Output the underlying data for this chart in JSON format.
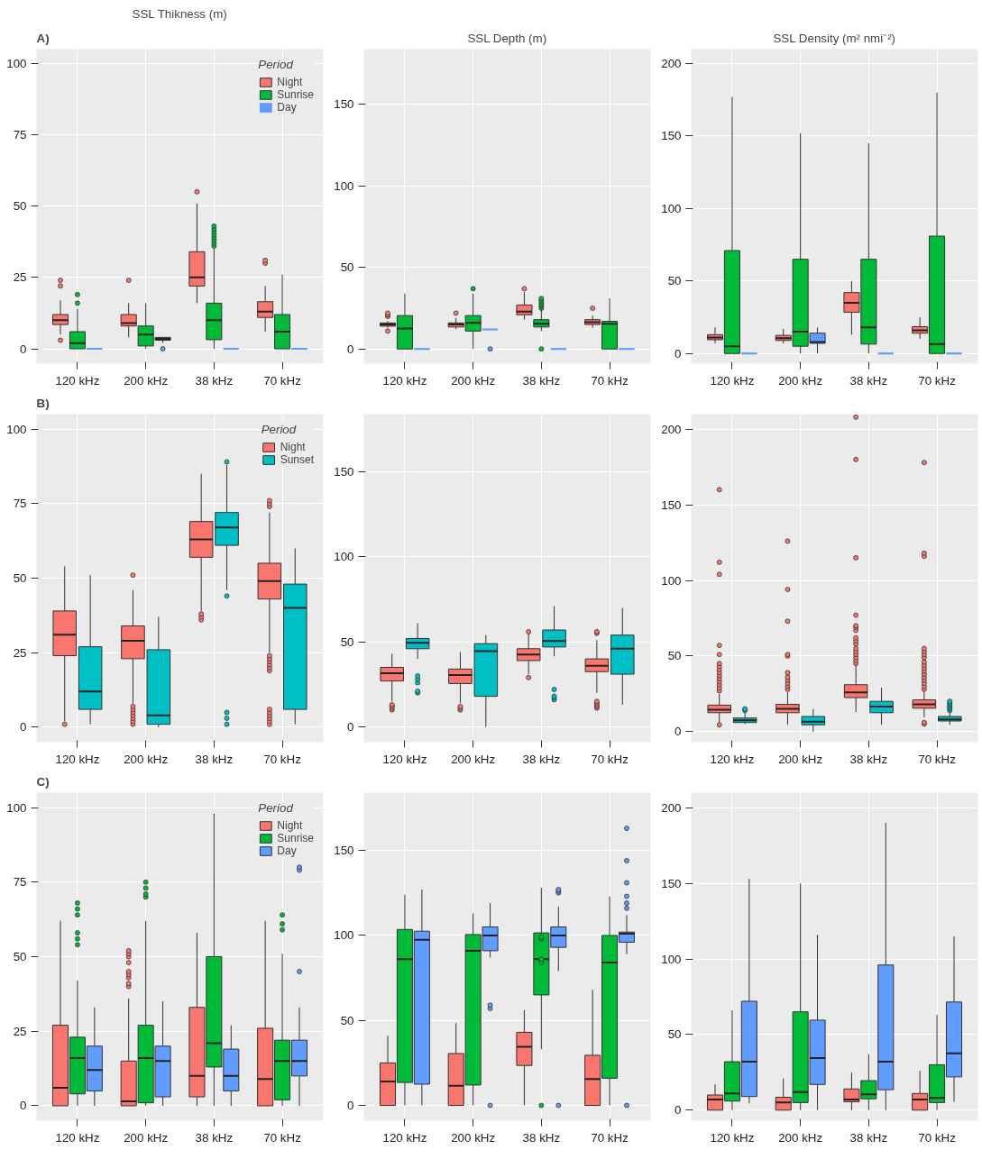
{
  "chart_data": [
    {
      "type": "box",
      "title": "SSL Thikness (m)",
      "annotations": [
        "A)"
      ],
      "categories": [
        "120 kHz",
        "200 kHz",
        "38 kHz",
        "70 kHz"
      ],
      "ylim": [
        -5.2,
        105
      ],
      "yticks": [
        0,
        25,
        50,
        75,
        100
      ],
      "grid": true,
      "legend": "top right",
      "legend_title": "Period",
      "series": [
        {
          "name": "Night",
          "color": "#f8766d",
          "boxes": [
            {
              "low": 5,
              "q1": 8.5,
              "median": 10,
              "q3": 12,
              "high": 17,
              "outliers": [
                3,
                22,
                24
              ]
            },
            {
              "low": 4,
              "q1": 8,
              "median": 9,
              "q3": 12,
              "high": 16,
              "outliers": [
                24
              ]
            },
            {
              "low": 16,
              "q1": 22,
              "median": 25,
              "q3": 34,
              "high": 51,
              "outliers": [
                55
              ]
            },
            {
              "low": 6,
              "q1": 11,
              "median": 13,
              "q3": 16.5,
              "high": 22,
              "outliers": [
                30,
                31
              ]
            }
          ]
        },
        {
          "name": "Sunrise",
          "color": "#00ba38",
          "boxes": [
            {
              "low": 0,
              "q1": 0,
              "median": 2,
              "q3": 6,
              "high": 14,
              "outliers": [
                16,
                19
              ]
            },
            {
              "low": 0,
              "q1": 1,
              "median": 5,
              "q3": 8,
              "high": 16
            },
            {
              "low": 0,
              "q1": 3.2,
              "median": 10,
              "q3": 16,
              "high": 35,
              "outliers": [
                36,
                37,
                38,
                39,
                40,
                41,
                42,
                43
              ]
            },
            {
              "low": 0,
              "q1": 0,
              "median": 6,
              "q3": 12,
              "high": 26
            }
          ]
        },
        {
          "name": "Day",
          "color": "#619cff",
          "boxes": [
            {
              "low": 0,
              "q1": 0,
              "median": 0,
              "q3": 0,
              "high": 0
            },
            {
              "low": 2,
              "q1": 3,
              "median": 3.5,
              "q3": 4,
              "high": 4,
              "outliers": [
                0
              ]
            },
            {
              "low": 0,
              "q1": 0,
              "median": 0,
              "q3": 0,
              "high": 0
            },
            {
              "low": 0,
              "q1": 0,
              "median": 0,
              "q3": 0,
              "high": 0
            }
          ]
        }
      ]
    },
    {
      "type": "box",
      "title": "SSL Depth (m)",
      "categories": [
        "120 kHz",
        "200 kHz",
        "38 kHz",
        "70 kHz"
      ],
      "ylim": [
        -9,
        184
      ],
      "yticks": [
        0,
        50,
        100,
        150
      ],
      "grid": true,
      "series": [
        {
          "color": "#f8766d",
          "boxes": [
            {
              "low": 13,
              "q1": 14,
              "median": 15,
              "q3": 16,
              "high": 17,
              "outliers": [
                11,
                20,
                21,
                22
              ]
            },
            {
              "low": 12,
              "q1": 13.5,
              "median": 15,
              "q3": 16,
              "high": 19,
              "outliers": [
                22
              ]
            },
            {
              "low": 18,
              "q1": 21,
              "median": 23,
              "q3": 27,
              "high": 35,
              "outliers": [
                37
              ]
            },
            {
              "low": 13,
              "q1": 15,
              "median": 16.5,
              "q3": 18,
              "high": 20.5,
              "outliers": [
                25
              ]
            }
          ]
        },
        {
          "color": "#00ba38",
          "boxes": [
            {
              "low": 0,
              "q1": 0,
              "median": 12.5,
              "q3": 20.5,
              "high": 34
            },
            {
              "low": 0,
              "q1": 11,
              "median": 16,
              "q3": 20.5,
              "high": 34,
              "outliers": [
                37
              ]
            },
            {
              "low": 11,
              "q1": 13.5,
              "median": 15.5,
              "q3": 18,
              "high": 24,
              "outliers": [
                0,
                25,
                26,
                27,
                28,
                29,
                30,
                31
              ]
            },
            {
              "low": 0,
              "q1": 0,
              "median": 15.5,
              "q3": 17,
              "high": 31
            }
          ]
        },
        {
          "color": "#619cff",
          "boxes": [
            {
              "low": 0,
              "q1": 0,
              "median": 0,
              "q3": 0,
              "high": 0
            },
            {
              "low": 12,
              "q1": 12,
              "median": 12,
              "q3": 12,
              "high": 12,
              "outliers": [
                0
              ]
            },
            {
              "low": 0,
              "q1": 0,
              "median": 0,
              "q3": 0,
              "high": 0
            },
            {
              "low": 0,
              "q1": 0,
              "median": 0,
              "q3": 0,
              "high": 0
            }
          ]
        }
      ]
    },
    {
      "type": "box",
      "title": "SSL Density (m² nmi⁻²)",
      "categories": [
        "120 kHz",
        "200 kHz",
        "38 kHz",
        "70 kHz"
      ],
      "ylim": [
        -7,
        210
      ],
      "yticks": [
        0,
        50,
        100,
        150,
        200
      ],
      "grid": true,
      "series": [
        {
          "color": "#f8766d",
          "boxes": [
            {
              "low": 7,
              "q1": 9.5,
              "median": 11,
              "q3": 13,
              "high": 18
            },
            {
              "low": 7,
              "q1": 9,
              "median": 10.5,
              "q3": 12.5,
              "high": 17
            },
            {
              "low": 13,
              "q1": 28.5,
              "median": 35,
              "q3": 42,
              "high": 50
            },
            {
              "low": 10,
              "q1": 14,
              "median": 16,
              "q3": 18.5,
              "high": 25
            }
          ]
        },
        {
          "color": "#00ba38",
          "boxes": [
            {
              "low": 0,
              "q1": 0,
              "median": 5,
              "q3": 71,
              "high": 177
            },
            {
              "low": 0,
              "q1": 5,
              "median": 15,
              "q3": 65,
              "high": 152
            },
            {
              "low": 0,
              "q1": 6.5,
              "median": 18,
              "q3": 65,
              "high": 145
            },
            {
              "low": 0,
              "q1": 0,
              "median": 6.5,
              "q3": 81,
              "high": 180
            }
          ]
        },
        {
          "color": "#619cff",
          "boxes": [
            {
              "low": 0,
              "q1": 0,
              "median": 0,
              "q3": 0,
              "high": 0
            },
            {
              "low": 0,
              "q1": 7,
              "median": 8,
              "q3": 14,
              "high": 18
            },
            {
              "low": 0,
              "q1": 0,
              "median": 0,
              "q3": 0,
              "high": 0
            },
            {
              "low": 0,
              "q1": 0,
              "median": 0,
              "q3": 0,
              "high": 0
            }
          ]
        }
      ]
    },
    {
      "type": "box",
      "annotations": [
        "B)"
      ],
      "categories": [
        "120 kHz",
        "200 kHz",
        "38 kHz",
        "70 kHz"
      ],
      "ylim": [
        -5,
        105
      ],
      "yticks": [
        0,
        25,
        50,
        75,
        100
      ],
      "grid": true,
      "legend": "top right",
      "legend_title": "Period",
      "series": [
        {
          "name": "Night",
          "color": "#f8766d",
          "boxes": [
            {
              "low": 2,
              "q1": 24,
              "median": 31,
              "q3": 39,
              "high": 54,
              "outliers": [
                1
              ]
            },
            {
              "low": 8,
              "q1": 23,
              "median": 29,
              "q3": 34,
              "high": 46,
              "outliers": [
                1,
                2,
                3,
                4,
                5,
                6,
                7,
                51
              ]
            },
            {
              "low": 39,
              "q1": 57,
              "median": 63,
              "q3": 69,
              "high": 85,
              "outliers": [
                36,
                37,
                38
              ]
            },
            {
              "low": 25,
              "q1": 43,
              "median": 49,
              "q3": 55,
              "high": 72,
              "outliers": [
                1,
                2,
                3,
                4,
                5,
                6,
                19,
                20,
                21,
                22,
                23,
                24,
                74,
                75,
                76
              ]
            }
          ]
        },
        {
          "name": "Sunset",
          "color": "#00bfc4",
          "boxes": [
            {
              "low": 1,
              "q1": 6,
              "median": 12,
              "q3": 27,
              "high": 51
            },
            {
              "low": 0,
              "q1": 1,
              "median": 4,
              "q3": 26,
              "high": 37
            },
            {
              "low": 46,
              "q1": 61,
              "median": 67,
              "q3": 72,
              "high": 88,
              "outliers": [
                1,
                3,
                5,
                44,
                89
              ]
            },
            {
              "low": 1,
              "q1": 6,
              "median": 40,
              "q3": 48,
              "high": 60
            }
          ]
        }
      ]
    },
    {
      "type": "box",
      "categories": [
        "120 kHz",
        "200 kHz",
        "38 kHz",
        "70 kHz"
      ],
      "ylim": [
        -9,
        184
      ],
      "yticks": [
        0,
        50,
        100,
        150
      ],
      "grid": true,
      "series": [
        {
          "color": "#f8766d",
          "boxes": [
            {
              "low": 15,
              "q1": 27,
              "median": 31.5,
              "q3": 35,
              "high": 43,
              "outliers": [
                10,
                11,
                12,
                13
              ]
            },
            {
              "low": 14,
              "q1": 25.5,
              "median": 30.5,
              "q3": 34,
              "high": 44,
              "outliers": [
                10,
                11,
                12
              ]
            },
            {
              "low": 31,
              "q1": 39,
              "median": 42.5,
              "q3": 46,
              "high": 55,
              "outliers": [
                29,
                56
              ]
            },
            {
              "low": 20,
              "q1": 32.5,
              "median": 36,
              "q3": 40,
              "high": 51,
              "outliers": [
                11,
                12,
                13,
                14,
                15,
                55,
                56
              ]
            }
          ]
        },
        {
          "color": "#00bfc4",
          "boxes": [
            {
              "low": 40,
              "q1": 46,
              "median": 49.5,
              "q3": 52,
              "high": 61,
              "outliers": [
                20,
                21,
                26,
                28,
                30
              ]
            },
            {
              "low": 0,
              "q1": 18,
              "median": 44.5,
              "q3": 49,
              "high": 54
            },
            {
              "low": 41.5,
              "q1": 47,
              "median": 50.5,
              "q3": 57,
              "high": 71,
              "outliers": [
                16,
                17,
                18,
                22
              ]
            },
            {
              "low": 13,
              "q1": 31,
              "median": 46,
              "q3": 54,
              "high": 70
            }
          ]
        }
      ]
    },
    {
      "type": "box",
      "categories": [
        "120 kHz",
        "200 kHz",
        "38 kHz",
        "70 kHz"
      ],
      "ylim": [
        -7,
        210
      ],
      "yticks": [
        0,
        50,
        100,
        150,
        200
      ],
      "grid": true,
      "series": [
        {
          "color": "#f8766d",
          "boxes": [
            {
              "low": 6,
              "q1": 12.5,
              "median": 14.5,
              "q3": 17.5,
              "high": 25,
              "outliers": [
                4.5,
                27,
                29,
                31,
                33,
                35,
                37,
                39,
                41,
                43,
                45,
                51,
                57,
                104,
                112,
                160
              ]
            },
            {
              "low": 4.5,
              "q1": 12.5,
              "median": 15,
              "q3": 18,
              "high": 26,
              "outliers": [
                28,
                30,
                32,
                34,
                36,
                39,
                50,
                51,
                73,
                94,
                126
              ]
            },
            {
              "low": 13,
              "q1": 22.5,
              "median": 26,
              "q3": 31,
              "high": 44,
              "outliers": [
                45,
                47,
                49,
                51,
                53,
                55,
                58,
                60,
                62,
                67,
                69,
                70,
                77,
                115,
                180,
                208
              ]
            },
            {
              "low": 9.5,
              "q1": 15.5,
              "median": 18,
              "q3": 21,
              "high": 27,
              "outliers": [
                5,
                6,
                28,
                30,
                32,
                34,
                36,
                38,
                40,
                42,
                44,
                46,
                49,
                51,
                53,
                55,
                116,
                118,
                178
              ]
            }
          ]
        },
        {
          "color": "#00bfc4",
          "boxes": [
            {
              "low": 5,
              "q1": 6,
              "median": 7.5,
              "q3": 9,
              "high": 13,
              "outliers": [
                14,
                15
              ]
            },
            {
              "low": 0,
              "q1": 4.5,
              "median": 6.5,
              "q3": 10,
              "high": 15
            },
            {
              "low": 4.5,
              "q1": 12.5,
              "median": 16.5,
              "q3": 20,
              "high": 29
            },
            {
              "low": 4.5,
              "q1": 7,
              "median": 8,
              "q3": 10,
              "high": 13,
              "outliers": [
                14,
                15,
                16,
                17,
                18,
                19,
                20
              ]
            }
          ]
        }
      ]
    },
    {
      "type": "box",
      "annotations": [
        "C)"
      ],
      "categories": [
        "120 kHz",
        "200 kHz",
        "38 kHz",
        "70 kHz"
      ],
      "ylim": [
        -5,
        105
      ],
      "yticks": [
        0,
        25,
        50,
        75,
        100
      ],
      "grid": true,
      "legend": "top right",
      "legend_title": "Period",
      "series": [
        {
          "name": "Night",
          "color": "#f8766d",
          "boxes": [
            {
              "low": 0,
              "q1": 0,
              "median": 6,
              "q3": 27,
              "high": 62
            },
            {
              "low": 0,
              "q1": 0,
              "median": 1.5,
              "q3": 15,
              "high": 36,
              "outliers": [
                40,
                41,
                43,
                44,
                45,
                48,
                50,
                51,
                52
              ]
            },
            {
              "low": 0,
              "q1": 3,
              "median": 10,
              "q3": 33,
              "high": 58
            },
            {
              "low": 0,
              "q1": 0,
              "median": 9,
              "q3": 26,
              "high": 62
            }
          ]
        },
        {
          "name": "Sunrise",
          "color": "#00ba38",
          "boxes": [
            {
              "low": 0,
              "q1": 4,
              "median": 16,
              "q3": 23,
              "high": 42,
              "outliers": [
                54,
                56,
                58,
                64,
                66,
                68
              ]
            },
            {
              "low": 0,
              "q1": 1,
              "median": 16,
              "q3": 27,
              "high": 62,
              "outliers": [
                70,
                71,
                73,
                75
              ]
            },
            {
              "low": 0,
              "q1": 13,
              "median": 21,
              "q3": 50,
              "high": 98
            },
            {
              "low": 0,
              "q1": 2,
              "median": 15,
              "q3": 22,
              "high": 51,
              "outliers": [
                59,
                61,
                64
              ]
            }
          ]
        },
        {
          "name": "Day",
          "color": "#619cff",
          "boxes": [
            {
              "low": 0,
              "q1": 5,
              "median": 12,
              "q3": 20,
              "high": 33
            },
            {
              "low": 0,
              "q1": 3,
              "median": 15,
              "q3": 20,
              "high": 35
            },
            {
              "low": 0,
              "q1": 5,
              "median": 10,
              "q3": 19,
              "high": 27
            },
            {
              "low": 0,
              "q1": 10,
              "median": 15,
              "q3": 22,
              "high": 33,
              "outliers": [
                45,
                79,
                80
              ]
            }
          ]
        }
      ]
    },
    {
      "type": "box",
      "categories": [
        "120 kHz",
        "200 kHz",
        "38 kHz",
        "70 kHz"
      ],
      "ylim": [
        -9,
        184
      ],
      "yticks": [
        0,
        50,
        100,
        150
      ],
      "grid": true,
      "series": [
        {
          "color": "#f8766d",
          "boxes": [
            {
              "low": 0,
              "q1": 0,
              "median": 14,
              "q3": 25,
              "high": 41
            },
            {
              "low": 0,
              "q1": 0,
              "median": 11.5,
              "q3": 30.5,
              "high": 48.5
            },
            {
              "low": 0,
              "q1": 23.5,
              "median": 34.5,
              "q3": 43,
              "high": 56
            },
            {
              "low": 0,
              "q1": 0,
              "median": 15.5,
              "q3": 29.5,
              "high": 68
            }
          ]
        },
        {
          "color": "#00ba38",
          "boxes": [
            {
              "low": 0,
              "q1": 13.5,
              "median": 86,
              "q3": 103.5,
              "high": 124
            },
            {
              "low": 0,
              "q1": 12,
              "median": 91,
              "q3": 100.5,
              "high": 113
            },
            {
              "low": 33,
              "q1": 65,
              "median": 86,
              "q3": 101.5,
              "high": 128,
              "outliers": [
                0,
                84,
                86,
                98,
                99
              ]
            },
            {
              "low": 0,
              "q1": 16,
              "median": 84,
              "q3": 100,
              "high": 123
            }
          ]
        },
        {
          "color": "#619cff",
          "boxes": [
            {
              "low": 0,
              "q1": 12.5,
              "median": 97.5,
              "q3": 102.5,
              "high": 127
            },
            {
              "low": 87,
              "q1": 91,
              "median": 100,
              "q3": 105,
              "high": 119,
              "outliers": [
                0,
                57,
                59
              ]
            },
            {
              "low": 79,
              "q1": 93,
              "median": 100,
              "q3": 105,
              "high": 117,
              "outliers": [
                0,
                125,
                126,
                127
              ]
            },
            {
              "low": 89,
              "q1": 96,
              "median": 101,
              "q3": 102,
              "high": 112,
              "outliers": [
                0,
                116,
                119,
                123,
                131,
                144,
                163
              ]
            }
          ]
        }
      ]
    },
    {
      "type": "box",
      "categories": [
        "120 kHz",
        "200 kHz",
        "38 kHz",
        "70 kHz"
      ],
      "ylim": [
        -7,
        210
      ],
      "yticks": [
        0,
        50,
        100,
        150,
        200
      ],
      "grid": true,
      "series": [
        {
          "color": "#f8766d",
          "boxes": [
            {
              "low": 0,
              "q1": 0,
              "median": 7,
              "q3": 10,
              "high": 17
            },
            {
              "low": 0,
              "q1": 0,
              "median": 5,
              "q3": 8.5,
              "high": 21
            },
            {
              "low": 0,
              "q1": 5.5,
              "median": 7,
              "q3": 14,
              "high": 25
            },
            {
              "low": 0,
              "q1": 0,
              "median": 7,
              "q3": 11,
              "high": 26
            }
          ]
        },
        {
          "color": "#00ba38",
          "boxes": [
            {
              "low": 0,
              "q1": 6,
              "median": 11,
              "q3": 32,
              "high": 66
            },
            {
              "low": 0,
              "q1": 5,
              "median": 12,
              "q3": 65,
              "high": 150
            },
            {
              "low": 0,
              "q1": 7.5,
              "median": 10.5,
              "q3": 19.5,
              "high": 37
            },
            {
              "low": 0,
              "q1": 5,
              "median": 8,
              "q3": 30,
              "high": 63
            }
          ]
        },
        {
          "color": "#619cff",
          "boxes": [
            {
              "low": 4.5,
              "q1": 9,
              "median": 32,
              "q3": 72,
              "high": 153
            },
            {
              "low": 0,
              "q1": 17,
              "median": 34.5,
              "q3": 59.5,
              "high": 116
            },
            {
              "low": 0,
              "q1": 13.5,
              "median": 32,
              "q3": 96,
              "high": 190
            },
            {
              "low": 5.5,
              "q1": 22,
              "median": 37.5,
              "q3": 71.5,
              "high": 115
            }
          ]
        }
      ]
    }
  ]
}
